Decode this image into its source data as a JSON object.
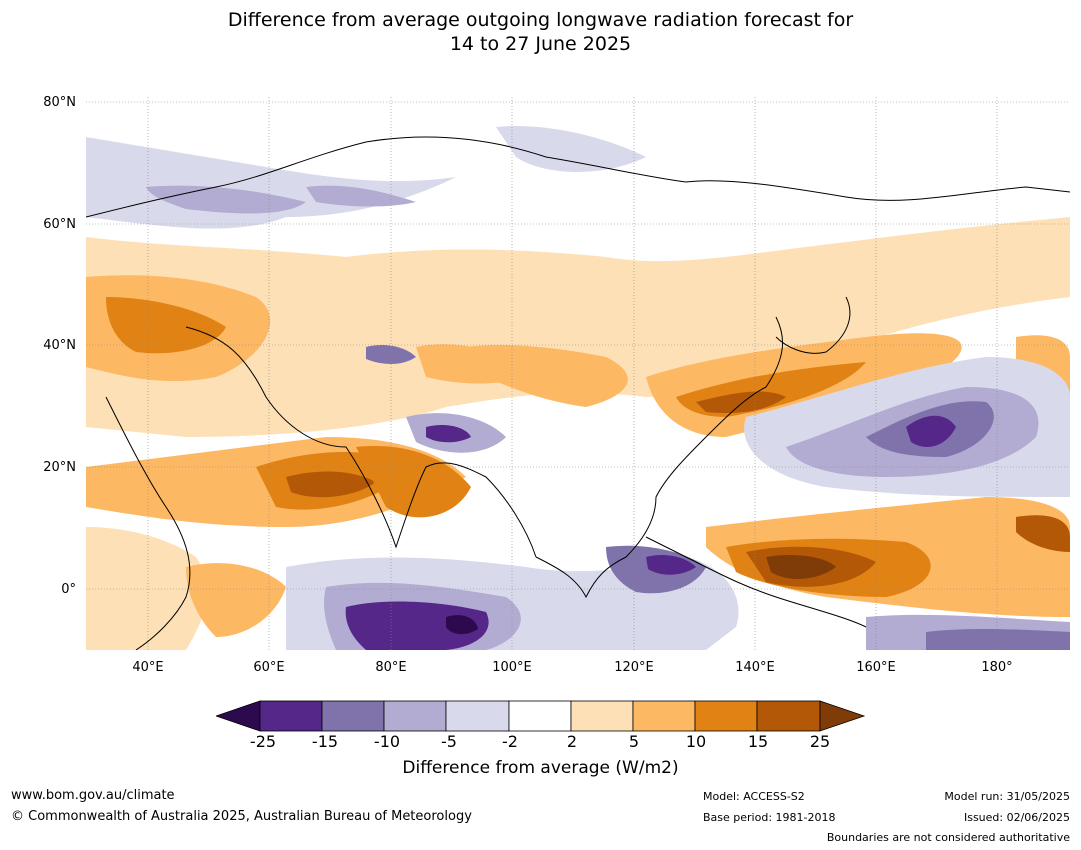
{
  "title_line1": "Difference from average outgoing longwave radiation forecast for",
  "title_line2": "14 to 27 June 2025",
  "lat_labels": [
    "80°N",
    "60°N",
    "40°N",
    "20°N",
    "0°"
  ],
  "lon_labels": [
    "40°E",
    "60°E",
    "80°E",
    "100°E",
    "120°E",
    "140°E",
    "160°E",
    "180°"
  ],
  "colorbar": {
    "ticks": [
      "-25",
      "-15",
      "-10",
      "-5",
      "-2",
      "2",
      "5",
      "10",
      "15",
      "25"
    ],
    "label": "Difference from average (W/m2)",
    "colors": {
      "below_min": "#2d0a4e",
      "c1": "#542788",
      "c2": "#8073ac",
      "c3": "#b2abd2",
      "c4": "#d8daeb",
      "c5": "#ffffff",
      "c6": "#fee0b6",
      "c7": "#fdb863",
      "c8": "#e08214",
      "c9": "#b35806",
      "above_max": "#7f3b08"
    }
  },
  "footer": {
    "website": "www.bom.gov.au/climate",
    "copyright": "© Commonwealth of Australia 2025, Australian Bureau of Meteorology",
    "model": "Model: ACCESS-S2",
    "base_period": "Base period: 1981-2018",
    "model_run": "Model run: 31/05/2025",
    "issued": "Issued: 02/06/2025",
    "disclaimer": "Boundaries are not considered authoritative"
  }
}
